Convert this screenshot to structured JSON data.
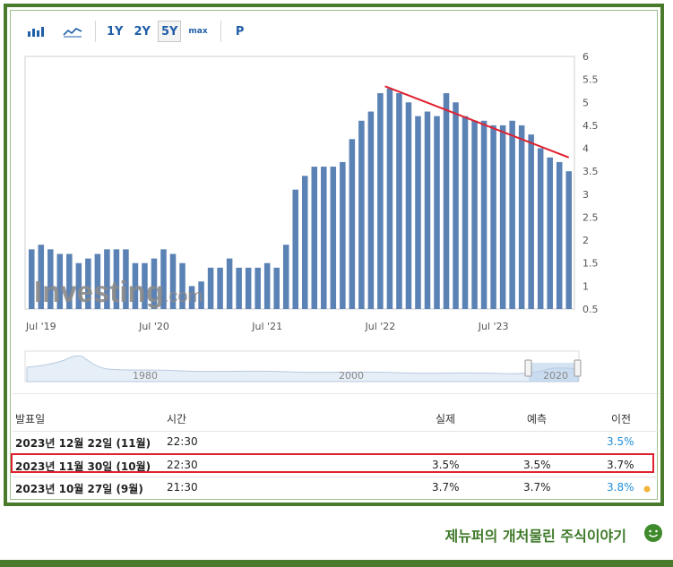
{
  "toolbar": {
    "bar_icon": "bar-chart-icon",
    "line_icon": "line-chart-icon",
    "ranges": [
      "1Y",
      "2Y",
      "5Y",
      "max"
    ],
    "active_range": "5Y",
    "p_label": "P"
  },
  "chart_data": {
    "type": "bar",
    "series": [
      {
        "values": [
          1.8,
          1.9,
          1.8,
          1.7,
          1.7,
          1.5,
          1.6,
          1.7,
          1.8,
          1.8,
          1.8,
          1.5,
          1.5,
          1.6,
          1.8,
          1.7,
          1.5,
          1.0,
          1.1,
          1.4,
          1.4,
          1.6,
          1.4,
          1.4,
          1.4,
          1.5,
          1.4,
          1.9,
          3.1,
          3.4,
          3.6,
          3.6,
          3.6,
          3.7,
          4.2,
          4.6,
          4.8,
          5.2,
          5.3,
          5.2,
          5.0,
          4.7,
          4.8,
          4.7,
          5.2,
          5.0,
          4.7,
          4.6,
          4.6,
          4.5,
          4.5,
          4.6,
          4.5,
          4.3,
          4.0,
          3.8,
          3.7,
          3.5
        ],
        "color": "#5b82b5"
      }
    ],
    "x_tick_labels": [
      "Jul '19",
      "Jul '20",
      "Jul '21",
      "Jul '22",
      "Jul '23"
    ],
    "x_tick_positions": [
      1,
      13,
      25,
      37,
      49
    ],
    "y_tick_labels": [
      "0.5",
      "1",
      "1.5",
      "2",
      "2.5",
      "3",
      "3.5",
      "4",
      "4.5",
      "5",
      "5.5",
      "6"
    ],
    "ylim": [
      0.5,
      6
    ],
    "watermark": "Investing.com",
    "trendline": {
      "from": [
        38,
        5.35
      ],
      "to": [
        57.5,
        3.8
      ],
      "color": "#e0202e"
    },
    "navigator": {
      "labels": [
        "1980",
        "2000",
        "2020"
      ]
    }
  },
  "table": {
    "headers": {
      "date": "발표일",
      "time": "시간",
      "actual": "실제",
      "forecast": "예측",
      "previous": "이전"
    },
    "rows": [
      {
        "date": "2023년 12월 22일 (11월)",
        "time": "22:30",
        "actual": "",
        "forecast": "",
        "previous": "3.5%",
        "prev_blue": true
      },
      {
        "date": "2023년 11월 30일 (10월)",
        "time": "22:30",
        "actual": "3.5%",
        "forecast": "3.5%",
        "previous": "3.7%",
        "prev_blue": false
      },
      {
        "date": "2023년 10월 27일 (9월)",
        "time": "21:30",
        "actual": "3.7%",
        "forecast": "3.7%",
        "previous": "3.8%",
        "prev_blue": true
      }
    ]
  },
  "footer": {
    "text": "제뉴퍼의 개처물린 주식이야기",
    "icon": "smiley-icon"
  }
}
